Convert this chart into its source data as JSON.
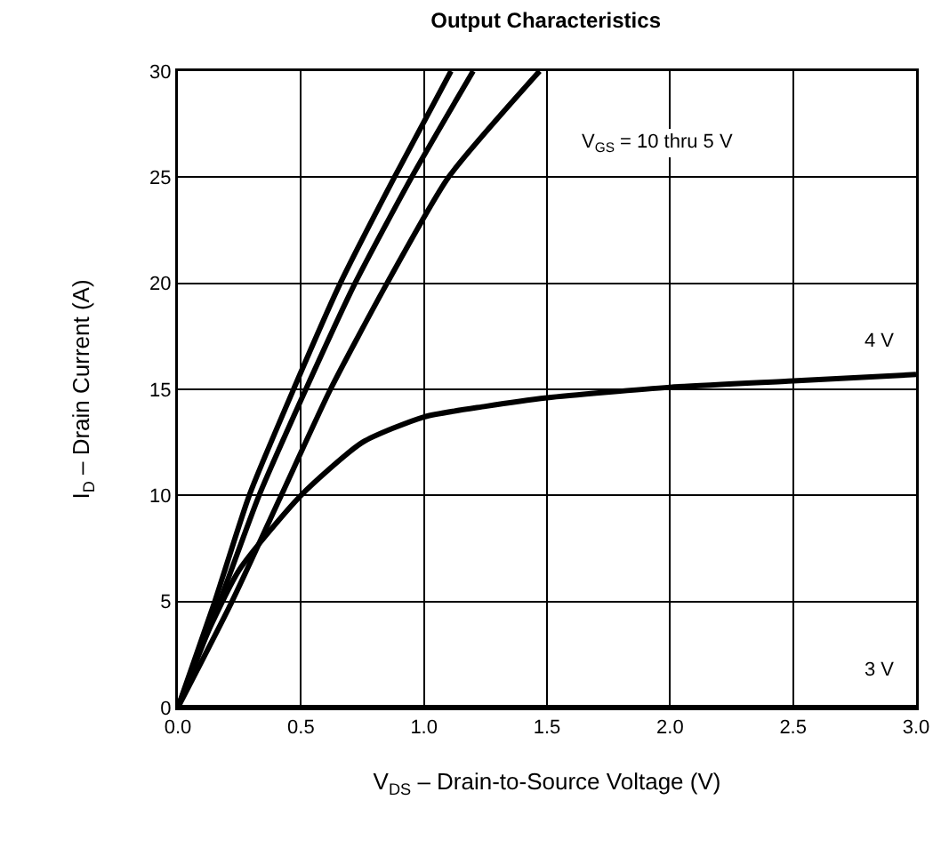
{
  "chart_data": {
    "type": "line",
    "title": "Output Characteristics",
    "xlabel": "V$_{DS}$ – Drain-to-Source Voltage (V)",
    "ylabel": "I$_{D}$ – Drain Current (A)",
    "xlim": [
      0,
      3
    ],
    "xticks": [
      {
        "value": 0,
        "label": "0.0"
      },
      0.5,
      {
        "value": 1,
        "label": "1.0"
      },
      1.5,
      {
        "value": 2,
        "label": "2.0"
      },
      2.5,
      {
        "value": 3,
        "label": "3.0"
      }
    ],
    "ylim": [
      0,
      30
    ],
    "yticks": [
      0,
      5,
      10,
      15,
      20,
      25,
      30
    ],
    "grid": true,
    "marker": "none",
    "line_style": "solid",
    "series": [
      {
        "color": "#000000",
        "x": [
          0,
          0.15,
          0.29,
          0.47,
          0.66,
          0.88,
          1.11
        ],
        "values": [
          0,
          5,
          10,
          15,
          20,
          25,
          30
        ]
      },
      {
        "color": "#000000",
        "x": [
          0,
          0.17,
          0.33,
          0.52,
          0.72,
          0.95,
          1.2
        ],
        "values": [
          0,
          5,
          10,
          15,
          20,
          25,
          30
        ]
      },
      {
        "color": "#000000",
        "x": [
          0,
          0.22,
          0.42,
          0.62,
          0.85,
          1.1,
          1.47
        ],
        "values": [
          0,
          5,
          10,
          15,
          20,
          25,
          30
        ]
      },
      {
        "color": "#000000",
        "x": [
          0,
          0.1,
          0.25,
          0.5,
          0.75,
          1.0,
          1.25,
          1.5,
          2.0,
          2.5,
          3.0
        ],
        "values": [
          0,
          3,
          6.5,
          10,
          12.5,
          13.7,
          14.2,
          14.6,
          15.1,
          15.4,
          15.7
        ]
      },
      {
        "color": "#000000",
        "x": [
          0,
          3
        ],
        "values": [
          0,
          0
        ]
      }
    ],
    "annotations": [
      "V$_{GS}$ = 10 thru 5 V",
      {
        "text": "4 V",
        "x": 2.85,
        "y": 17.3
      },
      {
        "text": "3 V",
        "x": 2.85,
        "y": 1.8
      }
    ]
  }
}
